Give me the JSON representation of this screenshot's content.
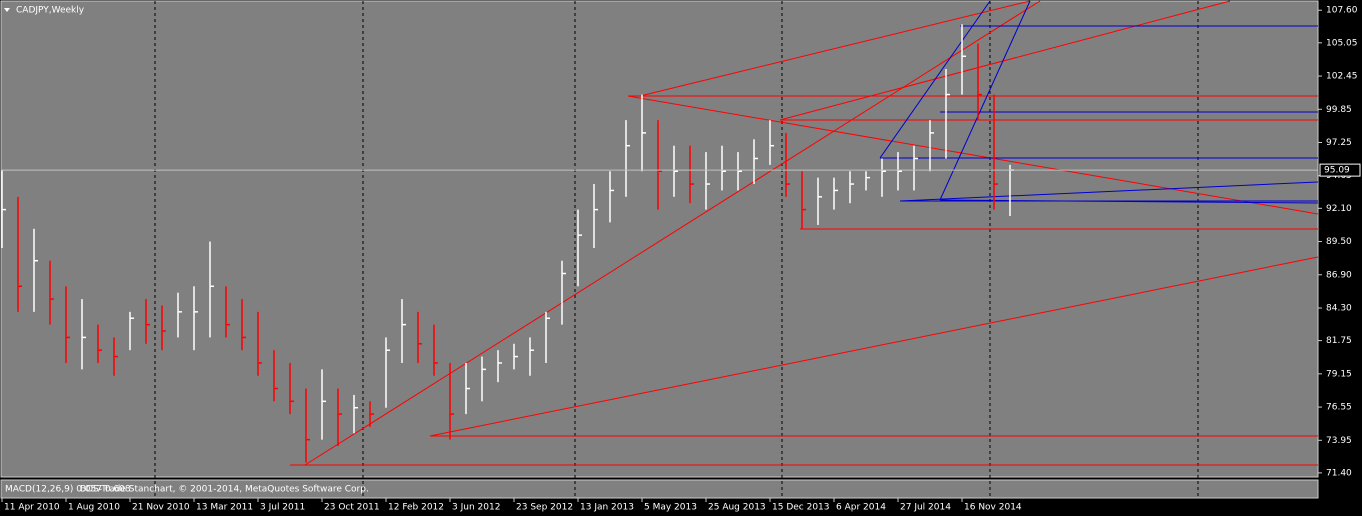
{
  "chart_data": {
    "type": "ohlc",
    "title": "CADJPY,Weekly",
    "categories": [
      null,
      null,
      null,
      null,
      null,
      null,
      null,
      null,
      null,
      null,
      null,
      null,
      null,
      null,
      null,
      null,
      null,
      null,
      null,
      null,
      null,
      null,
      null,
      null,
      null,
      null,
      null,
      null,
      null,
      null,
      null,
      null,
      null,
      null,
      null,
      null,
      null,
      null,
      null,
      null,
      null,
      null,
      null,
      null,
      null,
      null,
      null,
      null,
      null,
      null,
      null,
      null,
      null,
      null,
      null,
      null,
      null,
      null,
      null,
      null,
      null,
      null,
      null,
      null
    ],
    "high": [
      95.1,
      93,
      90.5,
      88,
      86,
      85,
      83,
      82,
      84,
      85,
      84.5,
      85.5,
      86,
      89.5,
      86,
      85,
      84,
      81,
      80,
      78,
      79.5,
      78,
      77.5,
      77,
      82,
      85,
      84,
      83,
      80,
      80,
      80.5,
      81,
      81.5,
      82,
      84,
      88,
      92,
      94,
      95,
      99,
      101,
      99,
      97,
      97,
      96.5,
      97,
      96.5,
      97.5,
      99,
      98,
      95,
      94.5,
      94.5,
      95,
      95,
      96,
      96.5,
      97,
      99,
      103,
      106.5,
      105,
      101,
      95.5
    ],
    "low": [
      89,
      84,
      84,
      83,
      80,
      79.5,
      80,
      79,
      81,
      81.5,
      81,
      82,
      81,
      82,
      82,
      81,
      79,
      77,
      76,
      72.2,
      74,
      73.5,
      74.5,
      75,
      76.5,
      80,
      80,
      79,
      74,
      76,
      77,
      78.5,
      79.5,
      79,
      80,
      83,
      86,
      89,
      91,
      93,
      95,
      92,
      93,
      92.5,
      92,
      93.5,
      93.5,
      94,
      95.5,
      93,
      90.5,
      90.8,
      92,
      92.5,
      93.5,
      93,
      93.5,
      93.5,
      95,
      96,
      101,
      99,
      92,
      91.5
    ],
    "close": [
      92,
      86,
      88,
      85,
      82,
      82,
      81,
      80.5,
      83.5,
      83,
      82.5,
      84,
      84,
      86,
      83,
      82,
      80,
      78,
      77,
      74,
      77,
      76,
      76.5,
      76,
      81,
      83,
      81.5,
      80,
      76,
      78,
      79.5,
      80,
      80.5,
      81,
      83.5,
      87,
      90,
      92,
      93.5,
      97,
      98,
      95,
      95,
      94,
      94,
      95,
      95,
      96,
      97,
      94,
      92,
      93,
      93.5,
      94,
      94.5,
      95,
      95,
      96,
      98,
      101,
      104,
      101,
      94,
      95.09
    ],
    "up_color": "#ffffff",
    "down_color": "#ff0000",
    "current_price": 95.09,
    "ylim": [
      71.0,
      108.4
    ],
    "yticks": [
      {
        "value": 107.6,
        "label": "107.60"
      },
      {
        "value": 105.05,
        "label": "105.05"
      },
      {
        "value": 102.45,
        "label": "102.45"
      },
      {
        "value": 99.85,
        "label": "99.85"
      },
      {
        "value": 97.25,
        "label": "97.25"
      },
      {
        "value": 94.65,
        "label": "94.65"
      },
      {
        "value": 92.1,
        "label": "92.10"
      },
      {
        "value": 89.5,
        "label": "89.50"
      },
      {
        "value": 86.9,
        "label": "86.90"
      },
      {
        "value": 84.3,
        "label": "84.30"
      },
      {
        "value": 81.75,
        "label": "81.75"
      },
      {
        "value": 79.15,
        "label": "79.15"
      },
      {
        "value": 76.55,
        "label": "76.55"
      },
      {
        "value": 73.95,
        "label": "73.95"
      },
      {
        "value": 71.4,
        "label": "71.40"
      }
    ],
    "xticks": [
      {
        "value": 0,
        "label": "11 Apr 2010"
      },
      {
        "value": 4,
        "label": "1 Aug 2010"
      },
      {
        "value": 8,
        "label": "21 Nov 2010"
      },
      {
        "value": 12,
        "label": "13 Mar 2011"
      },
      {
        "value": 16,
        "label": "3 Jul 2011"
      },
      {
        "value": 20,
        "label": "23 Oct 2011"
      },
      {
        "value": 24,
        "label": "12 Feb 2012"
      },
      {
        "value": 28,
        "label": "3 Jun 2012"
      },
      {
        "value": 32,
        "label": "23 Sep 2012"
      },
      {
        "value": 36,
        "label": "13 Jan 2013"
      },
      {
        "value": 40,
        "label": "5 May 2013"
      },
      {
        "value": 44,
        "label": "25 Aug 2013"
      },
      {
        "value": 48,
        "label": "15 Dec 2013"
      },
      {
        "value": 52,
        "label": "6 Apr 2014"
      },
      {
        "value": 56,
        "label": "27 Jul 2014"
      },
      {
        "value": 60,
        "label": "16 Nov 2014"
      }
    ],
    "indicator_label": "MACD(12,26,9) 0.057 0.608",
    "copyright": "BOS-Trade Stanchart, © 2001-2014, MetaQuotes Software Corp."
  }
}
